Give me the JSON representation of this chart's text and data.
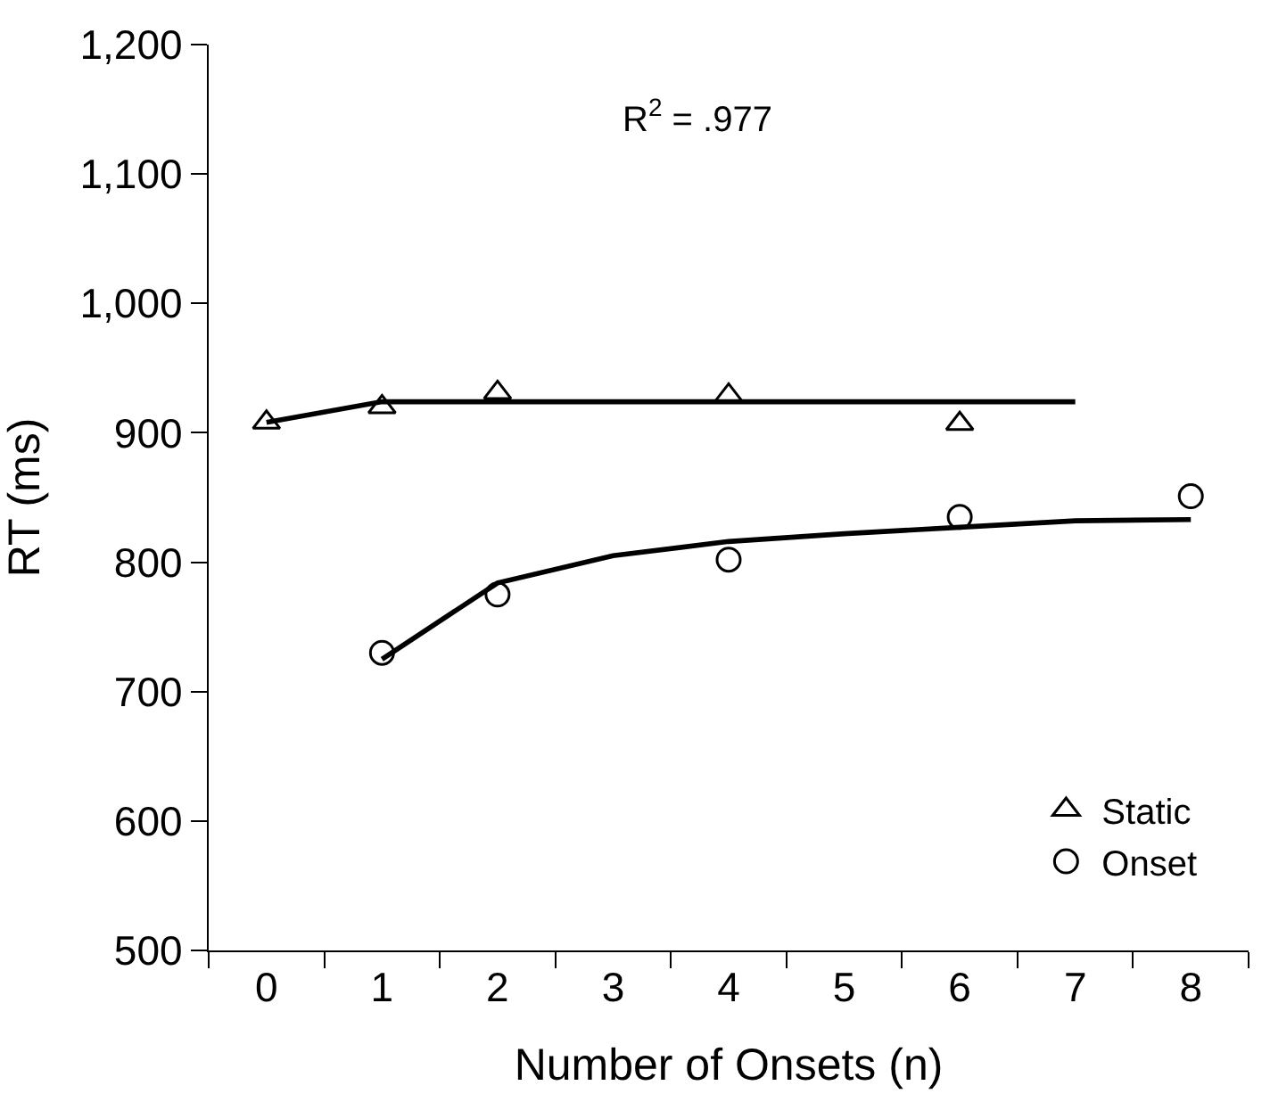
{
  "chart_data": {
    "type": "scatter",
    "xlabel": "Number of Onsets (n)",
    "ylabel": "RT (ms)",
    "categories": [
      "0",
      "1",
      "2",
      "3",
      "4",
      "5",
      "6",
      "7",
      "8"
    ],
    "series": [
      {
        "type": "line",
        "color": "#000000",
        "marker": "none",
        "line_style": "solid",
        "values": [
          908,
          924,
          924,
          924,
          924,
          924,
          924,
          924,
          null
        ]
      },
      {
        "type": "line",
        "color": "#000000",
        "marker": "none",
        "line_style": "solid",
        "values": [
          null,
          725,
          784,
          805,
          816,
          822,
          827,
          832,
          833
        ]
      },
      {
        "name": "Static",
        "color": "#000000",
        "marker": "triangle",
        "values": [
          908,
          920,
          931,
          null,
          929,
          null,
          907,
          null,
          null
        ]
      },
      {
        "name": "Onset",
        "color": "#000000",
        "marker": "circle",
        "values": [
          null,
          730,
          775,
          null,
          802,
          null,
          835,
          null,
          851
        ]
      }
    ],
    "ylim": [
      500,
      1200
    ],
    "yticks": [
      500,
      600,
      700,
      800,
      900,
      {
        "value": 1000,
        "label": "1,000"
      },
      {
        "value": 1100,
        "label": "1,100"
      },
      {
        "value": 1200,
        "label": "1,200"
      }
    ],
    "annotations": [
      "R$^{2}$ = .977"
    ],
    "legend": "bottom right"
  }
}
